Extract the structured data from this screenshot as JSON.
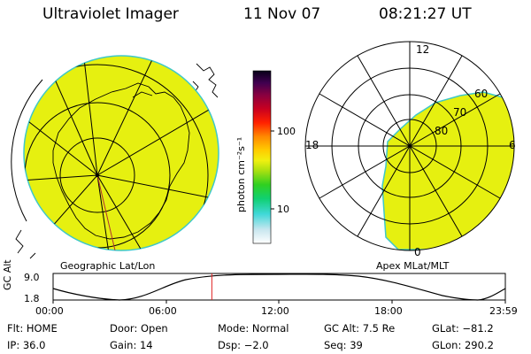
{
  "header": {
    "title": "Ultraviolet Imager",
    "date": "11 Nov 07",
    "time": "08:21:27 UT"
  },
  "colors": {
    "aurora_fill": "#e6f010",
    "aurora_edge": "#3fc8c8"
  },
  "colorbar": {
    "label": "photon cm⁻²s⁻¹",
    "ticks": [
      "100",
      "10"
    ]
  },
  "geo_panel": {
    "label": "Geographic Lat/Lon"
  },
  "mag_panel": {
    "label": "Apex MLat/MLT",
    "mlt_labels": [
      "12",
      "18",
      "6",
      "0"
    ],
    "mlat_labels": [
      "60",
      "70",
      "80"
    ]
  },
  "altitude_plot": {
    "ylabel": "GC Alt",
    "y_ticks": [
      "9.0",
      "1.8"
    ],
    "x_ticks": [
      "00:00",
      "06:00",
      "12:00",
      "18:00",
      "23:59"
    ],
    "current_time_fraction": 0.351
  },
  "info": {
    "row1": [
      {
        "label": "Flt:",
        "value": "HOME"
      },
      {
        "label": "Door:",
        "value": "Open"
      },
      {
        "label": "Mode:",
        "value": "Normal"
      },
      {
        "label": "GC Alt:",
        "value": "7.5 Re"
      },
      {
        "label": "GLat:",
        "value": "−81.2"
      }
    ],
    "row2": [
      {
        "label": "IP:",
        "value": "36.0"
      },
      {
        "label": "Gain:",
        "value": "14"
      },
      {
        "label": "Dsp:",
        "value": "−2.0"
      },
      {
        "label": "Seq:",
        "value": "39"
      },
      {
        "label": "GLon:",
        "value": "290.2"
      }
    ]
  }
}
